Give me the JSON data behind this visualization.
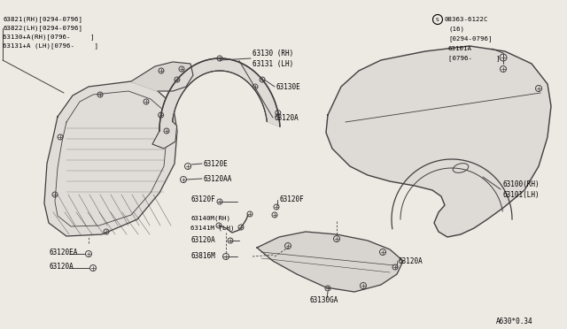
{
  "bg_color": "#ede9e3",
  "line_color": "#404040",
  "text_color": "#000000",
  "bottom_ref": "A630*0.34",
  "labels": {
    "top_left_block": [
      "63821(RH)[0294-0796]",
      "63822(LH)[0294-0796]",
      "63130+A(RH)[0796-     ]",
      "63131+A (LH)[0796-     ]"
    ],
    "fender_liner_rh": "63130 (RH)",
    "fender_liner_lh": "63131 (LH)",
    "clip_e": "63130E",
    "clip_120a_1": "63120A",
    "clip_120e": "63120E",
    "clip_120aa": "63120AA",
    "clip_120f_left": "63120F",
    "clip_120f_right": "63120F",
    "bracket_rh": "63140M(RH)",
    "bracket_lh": "63141M (LH)",
    "clip_120a_2": "63120A",
    "clip_816m": "63816M",
    "clip_120a_3": "63120A",
    "clip_130ga": "63130GA",
    "clip_120ea": "63120EA",
    "clip_120a_bot": "63120A",
    "fender_rh": "63100(RH)",
    "fender_lh": "63101(LH)",
    "top_right_line1": "08363-6122C",
    "top_right_line2": "(16)",
    "top_right_line3": "[0294-0796]",
    "top_right_line4": "63101A",
    "top_right_line5": "[0796-      ]"
  }
}
